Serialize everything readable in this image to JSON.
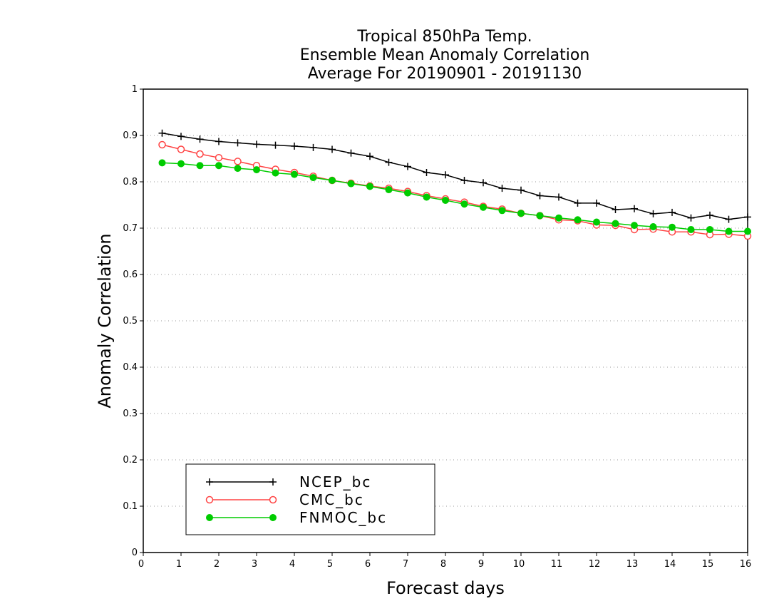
{
  "chart_data": {
    "type": "line",
    "title_lines": [
      "Tropical 850hPa Temp.",
      "Ensemble Mean Anomaly Correlation",
      "Average For 20190901 - 20191130"
    ],
    "xlabel": "Forecast days",
    "ylabel": "Anomaly Correlation",
    "xlim": [
      0,
      16
    ],
    "ylim": [
      0,
      1
    ],
    "x_ticks": [
      "0",
      "1",
      "2",
      "3",
      "4",
      "5",
      "6",
      "7",
      "8",
      "9",
      "10",
      "11",
      "12",
      "13",
      "14",
      "15",
      "16"
    ],
    "y_ticks": [
      "0",
      "0.1",
      "0.2",
      "0.3",
      "0.4",
      "0.5",
      "0.6",
      "0.7",
      "0.8",
      "0.9",
      "1"
    ],
    "grid": true,
    "legend_position": "bottom-left",
    "x": [
      0.5,
      1,
      1.5,
      2,
      2.5,
      3,
      3.5,
      4,
      4.5,
      5,
      5.5,
      6,
      6.5,
      7,
      7.5,
      8,
      8.5,
      9,
      9.5,
      10,
      10.5,
      11,
      11.5,
      12,
      12.5,
      13,
      13.5,
      14,
      14.5,
      15,
      15.5,
      16
    ],
    "series": [
      {
        "name": "NCEP_bc",
        "color": "#000000",
        "marker": "plus",
        "values": [
          0.905,
          0.898,
          0.892,
          0.887,
          0.884,
          0.881,
          0.879,
          0.877,
          0.874,
          0.87,
          0.862,
          0.855,
          0.842,
          0.833,
          0.82,
          0.815,
          0.803,
          0.798,
          0.786,
          0.782,
          0.77,
          0.767,
          0.754,
          0.754,
          0.74,
          0.742,
          0.731,
          0.734,
          0.722,
          0.728,
          0.719,
          0.724
        ]
      },
      {
        "name": "CMC_bc",
        "color": "#ff4444",
        "marker": "open-circle",
        "values": [
          0.88,
          0.87,
          0.86,
          0.852,
          0.844,
          0.835,
          0.827,
          0.82,
          0.812,
          0.803,
          0.797,
          0.791,
          0.786,
          0.779,
          0.77,
          0.763,
          0.756,
          0.747,
          0.741,
          0.732,
          0.727,
          0.718,
          0.716,
          0.707,
          0.706,
          0.697,
          0.698,
          0.692,
          0.692,
          0.686,
          0.687,
          0.683
        ]
      },
      {
        "name": "FNMOC_bc",
        "color": "#00cc00",
        "marker": "filled-circle",
        "values": [
          0.841,
          0.839,
          0.835,
          0.835,
          0.829,
          0.826,
          0.819,
          0.816,
          0.809,
          0.803,
          0.796,
          0.79,
          0.783,
          0.776,
          0.767,
          0.76,
          0.752,
          0.745,
          0.738,
          0.732,
          0.727,
          0.722,
          0.718,
          0.713,
          0.71,
          0.706,
          0.703,
          0.702,
          0.697,
          0.697,
          0.693,
          0.693
        ]
      }
    ]
  }
}
